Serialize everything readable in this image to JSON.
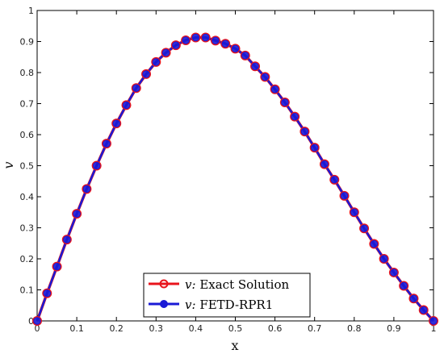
{
  "chart_data": {
    "type": "line",
    "xlabel": "x",
    "ylabel": "v",
    "xlim": [
      0,
      1
    ],
    "ylim": [
      0,
      1
    ],
    "xticks": [
      "0",
      "0.1",
      "0.2",
      "0.3",
      "0.4",
      "0.5",
      "0.6",
      "0.7",
      "0.8",
      "0.9",
      "1"
    ],
    "yticks": [
      "0",
      "0.1",
      "0.2",
      "0.3",
      "0.4",
      "0.5",
      "0.6",
      "0.7",
      "0.8",
      "0.9",
      "1"
    ],
    "grid": false,
    "legend_position": "bottom-center",
    "x": [
      0,
      0.025,
      0.05,
      0.075,
      0.1,
      0.125,
      0.15,
      0.175,
      0.2,
      0.225,
      0.25,
      0.275,
      0.3,
      0.325,
      0.35,
      0.375,
      0.4,
      0.425,
      0.45,
      0.475,
      0.5,
      0.525,
      0.55,
      0.575,
      0.6,
      0.625,
      0.65,
      0.675,
      0.7,
      0.725,
      0.75,
      0.775,
      0.8,
      0.825,
      0.85,
      0.875,
      0.9,
      0.925,
      0.95,
      0.975,
      1
    ],
    "series": [
      {
        "name": "Exact Solution",
        "legend_prefix": "v:",
        "color": "#e8141c",
        "marker": "open-circle",
        "values": [
          0,
          0.089,
          0.175,
          0.262,
          0.345,
          0.425,
          0.5,
          0.571,
          0.636,
          0.695,
          0.75,
          0.795,
          0.834,
          0.864,
          0.888,
          0.904,
          0.913,
          0.913,
          0.903,
          0.893,
          0.877,
          0.855,
          0.82,
          0.786,
          0.746,
          0.704,
          0.658,
          0.61,
          0.558,
          0.505,
          0.455,
          0.403,
          0.35,
          0.298,
          0.248,
          0.2,
          0.156,
          0.113,
          0.072,
          0.035,
          0
        ]
      },
      {
        "name": "FETD-RPR1",
        "legend_prefix": "v:",
        "color": "#1a1ad6",
        "marker": "filled-circle",
        "values": [
          0,
          0.089,
          0.175,
          0.262,
          0.345,
          0.425,
          0.5,
          0.571,
          0.636,
          0.695,
          0.75,
          0.795,
          0.834,
          0.864,
          0.888,
          0.904,
          0.913,
          0.913,
          0.903,
          0.893,
          0.877,
          0.855,
          0.82,
          0.786,
          0.746,
          0.704,
          0.658,
          0.61,
          0.558,
          0.505,
          0.455,
          0.403,
          0.35,
          0.298,
          0.248,
          0.2,
          0.156,
          0.113,
          0.072,
          0.035,
          0
        ]
      }
    ]
  }
}
